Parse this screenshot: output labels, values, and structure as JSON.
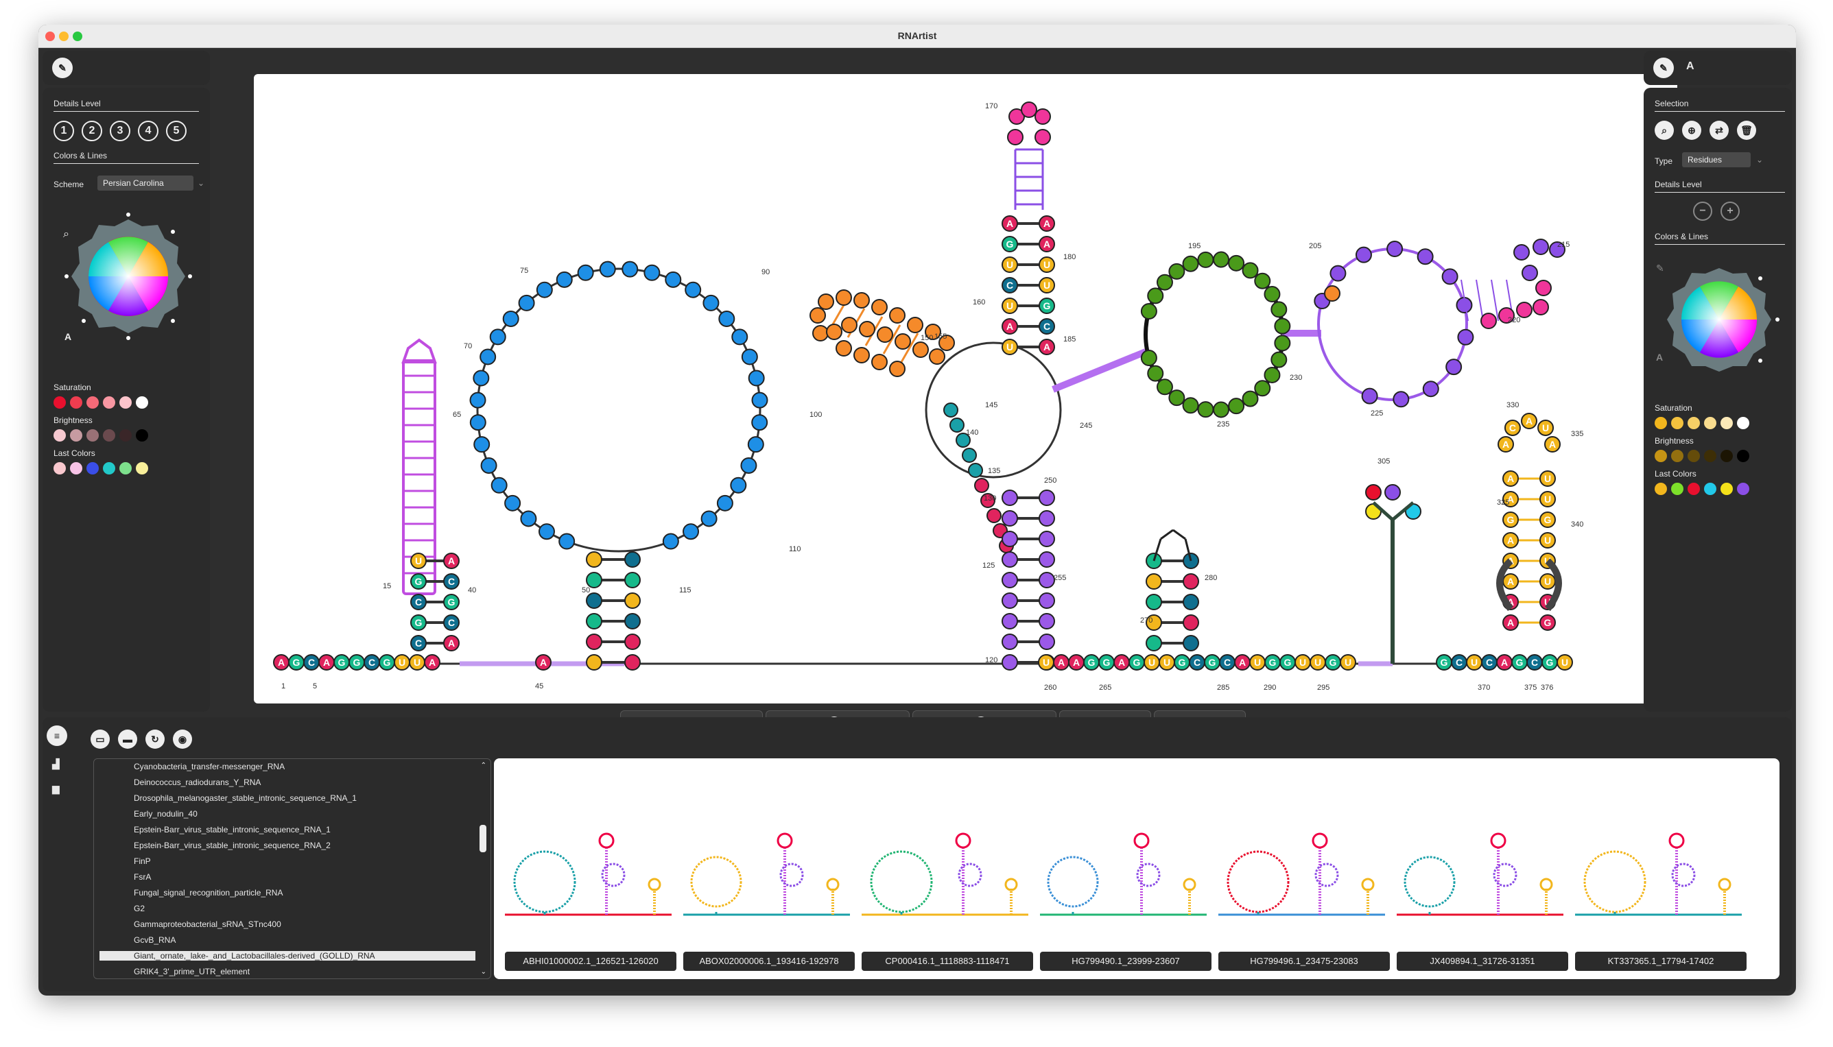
{
  "app": {
    "title": "RNArtist"
  },
  "left_panel": {
    "details_level_label": "Details Level",
    "levels": [
      "1",
      "2",
      "3",
      "4",
      "5"
    ],
    "colors_lines_label": "Colors & Lines",
    "scheme_label": "Scheme",
    "scheme_value": "Persian Carolina",
    "saturation_label": "Saturation",
    "brightness_label": "Brightness",
    "last_colors_label": "Last Colors",
    "saturation_colors": [
      "#e8102e",
      "#ef3d4f",
      "#f56a78",
      "#f897a2",
      "#fcc4cb",
      "#ffffff"
    ],
    "brightness_colors": [
      "#f5c8cf",
      "#c79ba1",
      "#9a7176",
      "#6b4a4e",
      "#3a2628",
      "#000000"
    ],
    "last_colors": [
      "#f9c8ce",
      "#f7c3e6",
      "#3a4ee8",
      "#22c9c9",
      "#7de08c",
      "#f8ef9a"
    ]
  },
  "right_panel": {
    "selection_label": "Selection",
    "type_label": "Type",
    "type_value": "Residues",
    "details_level_label": "Details Level",
    "colors_lines_label": "Colors & Lines",
    "saturation_label": "Saturation",
    "brightness_label": "Brightness",
    "last_colors_label": "Last Colors",
    "saturation_colors": [
      "#f2b61d",
      "#f4c23e",
      "#f6cf66",
      "#f9dc8e",
      "#fbe9b8",
      "#ffffff"
    ],
    "brightness_colors": [
      "#c69414",
      "#94700f",
      "#654c0a",
      "#3d2e06",
      "#1c1503",
      "#000000"
    ],
    "last_colors": [
      "#f2b61d",
      "#7de02a",
      "#e8102e",
      "#22c9e9",
      "#f4e11a",
      "#8b4fe6"
    ]
  },
  "structure": {
    "seq_5p": [
      "A",
      "G",
      "C",
      "A",
      "G",
      "G",
      "C",
      "G",
      "U",
      "U",
      "A"
    ],
    "stem1_left": [
      "C",
      "G",
      "C",
      "G",
      "U"
    ],
    "stem1_right": [
      "A",
      "C",
      "G",
      "C",
      "A"
    ],
    "stem2_left": [
      "U",
      "A",
      "G",
      "C",
      "G",
      "U"
    ],
    "stem2_right": [
      "A",
      "A",
      "C",
      "U",
      "G",
      "C"
    ],
    "seq_3p": [
      "U",
      "A",
      "A",
      "G",
      "G",
      "A",
      "G",
      "U",
      "U",
      "G",
      "C",
      "G",
      "C",
      "A",
      "U",
      "G",
      "G",
      "U",
      "U",
      "G",
      "U"
    ],
    "last_stem_left": [
      "A",
      "A",
      "A",
      "A",
      "A",
      "G",
      "A",
      "A"
    ],
    "last_stem_right": [
      "G",
      "U",
      "U",
      "U",
      "U",
      "G",
      "U",
      "U"
    ],
    "last_loop": [
      "A",
      "C",
      "A",
      "U",
      "A"
    ],
    "tail": [
      "G",
      "C",
      "U",
      "C",
      "A",
      "G",
      "C",
      "G",
      "U"
    ],
    "mid_letters": [
      "U",
      "U",
      "G",
      "A",
      "C",
      "U",
      "U",
      "A",
      "A",
      "U",
      "A",
      "U"
    ],
    "numbers": [
      "1",
      "5",
      "15",
      "40",
      "45",
      "50",
      "65",
      "70",
      "75",
      "90",
      "100",
      "110",
      "115",
      "120",
      "125",
      "130",
      "135",
      "140",
      "145",
      "150",
      "155",
      "160",
      "170",
      "180",
      "185",
      "195",
      "205",
      "215",
      "220",
      "225",
      "230",
      "235",
      "245",
      "250",
      "255",
      "260",
      "265",
      "270",
      "280",
      "285",
      "290",
      "295",
      "305",
      "325",
      "330",
      "335",
      "340",
      "370",
      "375",
      "376"
    ]
  },
  "rna_list": {
    "items": [
      "Cyanobacteria_transfer-messenger_RNA",
      "Deinococcus_radiodurans_Y_RNA",
      "Drosophila_melanogaster_stable_intronic_sequence_RNA_1",
      "Early_nodulin_40",
      "Epstein-Barr_virus_stable_intronic_sequence_RNA_1",
      "Epstein-Barr_virus_stable_intronic_sequence_RNA_2",
      "FinP",
      "FsrA",
      "Fungal_signal_recognition_particle_RNA",
      "G2",
      "Gammaproteobacterial_sRNA_STnc400",
      "GcvB_RNA",
      "Giant,_ornate,_lake-_and_Lactobacillales-derived_(GOLLD)_RNA",
      "GRIK4_3'_prime_UTR_element"
    ],
    "selected_index": 12
  },
  "thumbnails": [
    {
      "label": "ABHI01000002.1_126521-126020"
    },
    {
      "label": "ABOX02000006.1_193416-192978"
    },
    {
      "label": "CP000416.1_1118883-1118471"
    },
    {
      "label": "HG799490.1_23999-23607"
    },
    {
      "label": "HG799496.1_23475-23083"
    },
    {
      "label": "JX409894.1_31726-31351"
    },
    {
      "label": "KT337365.1_17794-17402"
    }
  ]
}
